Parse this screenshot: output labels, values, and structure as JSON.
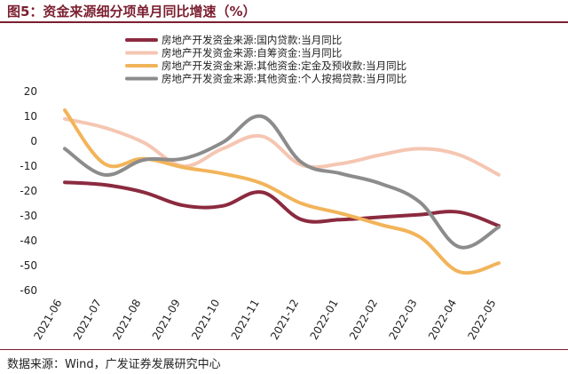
{
  "figure": {
    "title": "图5：资金来源细分项单月同比增速（%）",
    "source": "数据来源：Wind，广发证券发展研究中心",
    "title_color": "#7b1f30"
  },
  "chart_data": {
    "type": "line",
    "title": "图5：资金来源细分项单月同比增速（%）",
    "xlabel": "",
    "ylabel": "",
    "categories": [
      "2021-06",
      "2021-07",
      "2021-08",
      "2021-09",
      "2021-10",
      "2021-11",
      "2021-12",
      "2022-01",
      "2022-02",
      "2022-03",
      "2022-04",
      "2022-05"
    ],
    "ylim": [
      -60,
      20
    ],
    "yticks": [
      20,
      10,
      0,
      -10,
      -20,
      -30,
      -40,
      -50,
      -60
    ],
    "grid": false,
    "legend_position": "top-left",
    "series": [
      {
        "name": "房地产开发资金来源:国内贷款:当月同比",
        "color": "#8b2a3f",
        "values": [
          -16.5,
          -17.5,
          -20.5,
          -25.8,
          -26.0,
          -20.5,
          -31.5,
          -31.5,
          -30.5,
          -29.5,
          -28.5,
          -34.0
        ]
      },
      {
        "name": "房地产开发资金来源:自筹资金:当月同比",
        "color": "#f5c6b2",
        "values": [
          9.0,
          5.5,
          -0.5,
          -10.0,
          -3.0,
          2.0,
          -9.5,
          -9.0,
          -5.5,
          -3.0,
          -5.5,
          -13.5
        ]
      },
      {
        "name": "房地产开发资金来源:其他资金:定金及预收款:当月同比",
        "color": "#f2b45a",
        "values": [
          12.5,
          -9.0,
          -7.0,
          -10.5,
          -13.0,
          -17.0,
          -25.0,
          -29.0,
          -33.5,
          -38.5,
          -52.5,
          -49.0
        ]
      },
      {
        "name": "房地产开发资金来源:其他资金:个人按揭贷款:当月同比",
        "color": "#8c8c8c",
        "values": [
          -3.0,
          -13.5,
          -7.5,
          -7.0,
          -0.5,
          10.0,
          -8.5,
          -13.0,
          -17.0,
          -24.5,
          -42.5,
          -34.5
        ]
      }
    ]
  }
}
